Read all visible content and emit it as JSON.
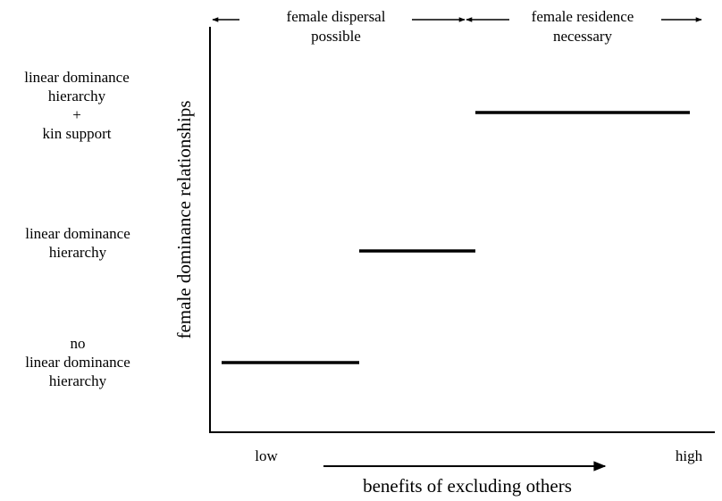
{
  "diagram": {
    "y_axis_label": "female dominance relationships",
    "x_axis_label": "benefits of excluding others",
    "x_low_label": "low",
    "x_high_label": "high",
    "top_regions": [
      {
        "lines": [
          "female dispersal",
          "possible"
        ]
      },
      {
        "lines": [
          "female residence",
          "necessary"
        ]
      }
    ],
    "levels": [
      {
        "lines": [
          "linear dominance",
          "hierarchy",
          "+",
          "kin support"
        ]
      },
      {
        "lines": [
          "linear dominance",
          "hierarchy"
        ]
      },
      {
        "lines": [
          "no",
          "linear dominance",
          "hierarchy"
        ]
      }
    ]
  }
}
